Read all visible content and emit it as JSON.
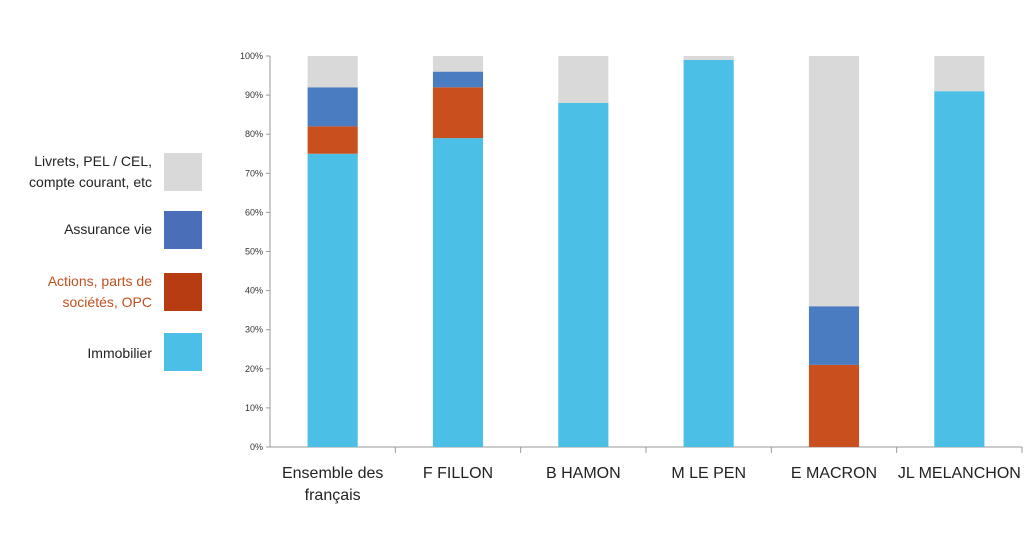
{
  "chart_data": {
    "type": "bar",
    "stacked": true,
    "categories": [
      [
        "Ensemble des",
        "français"
      ],
      [
        "F FILLON"
      ],
      [
        "B HAMON"
      ],
      [
        "M LE PEN"
      ],
      [
        "E MACRON"
      ],
      [
        "JL MELANCHON"
      ]
    ],
    "series": [
      {
        "name": "Immobilier",
        "color": "#4bbfe6",
        "values": [
          75,
          79,
          88,
          99,
          0,
          91
        ]
      },
      {
        "name": "Actions, parts de sociétés, OPC",
        "color": "#c9501e",
        "values": [
          7,
          13,
          0,
          0,
          21,
          0
        ]
      },
      {
        "name": "Assurance vie",
        "color": "#4a7cc2",
        "values": [
          10,
          4,
          0,
          0,
          15,
          0
        ]
      },
      {
        "name": "Livrets, PEL / CEL, compte courant, etc",
        "color": "#d9d9d9",
        "values": [
          8,
          4,
          12,
          1,
          64,
          9
        ]
      }
    ],
    "ylim": [
      0,
      100
    ],
    "yticks": [
      "0%",
      "10%",
      "20%",
      "30%",
      "40%",
      "50%",
      "60%",
      "70%",
      "80%",
      "90%",
      "100%"
    ],
    "grid": false,
    "legend_position": "left"
  },
  "legend": [
    {
      "lines": [
        "Livrets, PEL / CEL,",
        "compte courant, etc"
      ],
      "color": "#d9d9d9",
      "text_color": "#222222"
    },
    {
      "lines": [
        "Assurance vie"
      ],
      "color": "#4a6eb8",
      "text_color": "#222222"
    },
    {
      "lines": [
        "Actions, parts de",
        "sociétés, OPC"
      ],
      "color": "#b83c12",
      "text_color": "#c0501e"
    },
    {
      "lines": [
        "Immobilier"
      ],
      "color": "#4bbfe6",
      "text_color": "#222222"
    }
  ]
}
